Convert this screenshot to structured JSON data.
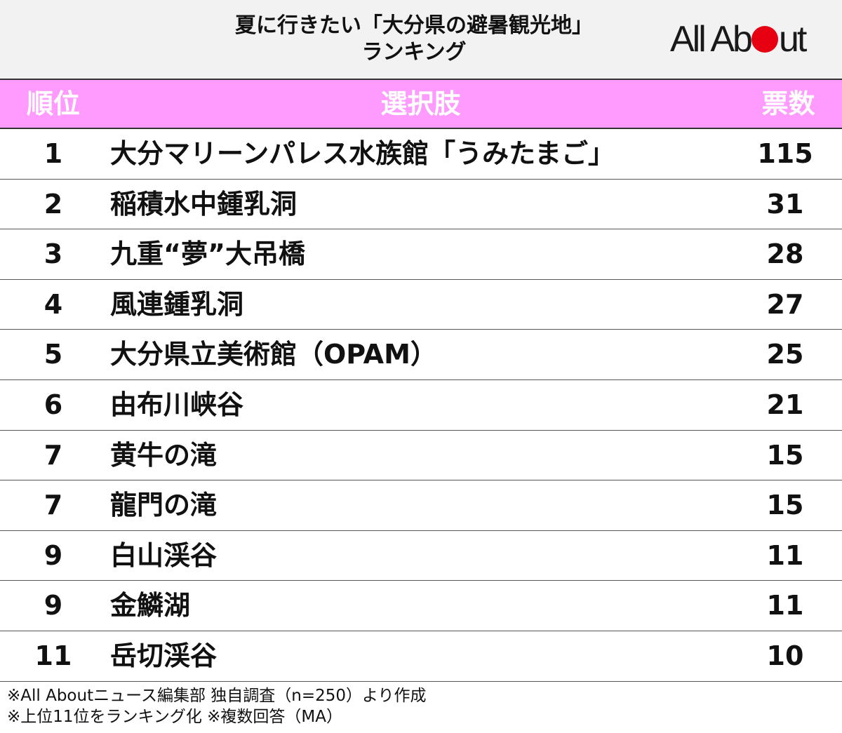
{
  "title": {
    "line1": "夏に行きたい「大分県の避暑観光地」",
    "line2": "ランキング"
  },
  "logo": {
    "text_before": "All Ab",
    "text_after": "ut",
    "dot_color": "#e60012"
  },
  "table": {
    "headers": {
      "rank": "順位",
      "choice": "選択肢",
      "votes": "票数"
    },
    "header_color": "#ff9aff",
    "rows": [
      {
        "rank": "1",
        "name": "大分マリーンパレス水族館「うみたまご」",
        "votes": "115"
      },
      {
        "rank": "2",
        "name": "稲積水中鍾乳洞",
        "votes": "31"
      },
      {
        "rank": "3",
        "name": "九重“夢”大吊橋",
        "votes": "28"
      },
      {
        "rank": "4",
        "name": "風連鍾乳洞",
        "votes": "27"
      },
      {
        "rank": "5",
        "name": "大分県立美術館（OPAM）",
        "votes": "25"
      },
      {
        "rank": "6",
        "name": "由布川峡谷",
        "votes": "21"
      },
      {
        "rank": "7",
        "name": "黄牛の滝",
        "votes": "15"
      },
      {
        "rank": "7",
        "name": "龍門の滝",
        "votes": "15"
      },
      {
        "rank": "9",
        "name": "白山渓谷",
        "votes": "11"
      },
      {
        "rank": "9",
        "name": "金鱗湖",
        "votes": "11"
      },
      {
        "rank": "11",
        "name": "岳切渓谷",
        "votes": "10"
      }
    ]
  },
  "notes": {
    "line1": "※All Aboutニュース編集部 独自調査（n=250）より作成",
    "line2": "※上位11位をランキング化 ※複数回答（MA）"
  }
}
